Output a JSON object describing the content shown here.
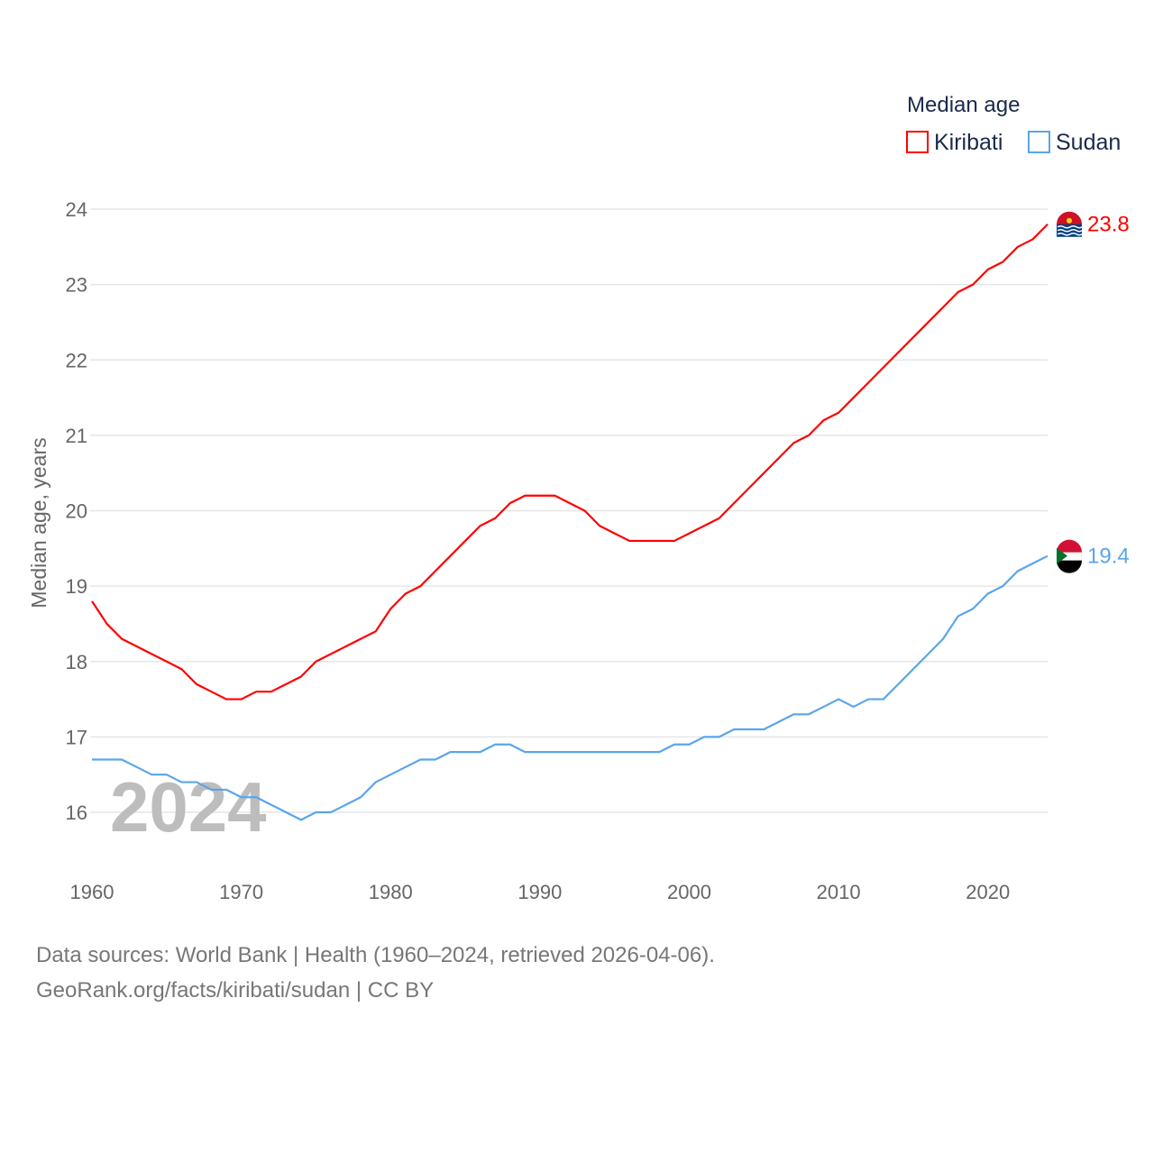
{
  "chart_data": {
    "type": "line",
    "title": "",
    "xlabel": "",
    "ylabel": "Median age, years",
    "ylim": [
      16,
      24
    ],
    "xlim": [
      1960,
      2024
    ],
    "yticks": [
      "16",
      "17",
      "18",
      "19",
      "20",
      "21",
      "22",
      "23",
      "24"
    ],
    "xticks": [
      "1960",
      "1970",
      "1980",
      "1990",
      "2000",
      "2010",
      "2020"
    ],
    "grid": true,
    "legend_title": "Median age",
    "legend_position": "top-right",
    "year_label": "2024",
    "x": [
      1960,
      1961,
      1962,
      1963,
      1964,
      1965,
      1966,
      1967,
      1968,
      1969,
      1970,
      1971,
      1972,
      1973,
      1974,
      1975,
      1976,
      1977,
      1978,
      1979,
      1980,
      1981,
      1982,
      1983,
      1984,
      1985,
      1986,
      1987,
      1988,
      1989,
      1990,
      1991,
      1992,
      1993,
      1994,
      1995,
      1996,
      1997,
      1998,
      1999,
      2000,
      2001,
      2002,
      2003,
      2004,
      2005,
      2006,
      2007,
      2008,
      2009,
      2010,
      2011,
      2012,
      2013,
      2014,
      2015,
      2016,
      2017,
      2018,
      2019,
      2020,
      2021,
      2022,
      2023,
      2024
    ],
    "series": [
      {
        "name": "Kiribati",
        "color": "#ff0000",
        "end_label": "23.8",
        "values": [
          18.8,
          18.5,
          18.3,
          18.2,
          18.1,
          18.0,
          17.9,
          17.7,
          17.6,
          17.5,
          17.5,
          17.6,
          17.6,
          17.7,
          17.8,
          18.0,
          18.1,
          18.2,
          18.3,
          18.4,
          18.7,
          18.9,
          19.0,
          19.2,
          19.4,
          19.6,
          19.8,
          19.9,
          20.1,
          20.2,
          20.2,
          20.2,
          20.1,
          20.0,
          19.8,
          19.7,
          19.6,
          19.6,
          19.6,
          19.6,
          19.7,
          19.8,
          19.9,
          20.1,
          20.3,
          20.5,
          20.7,
          20.9,
          21.0,
          21.2,
          21.3,
          21.5,
          21.7,
          21.9,
          22.1,
          22.3,
          22.5,
          22.7,
          22.9,
          23.0,
          23.2,
          23.3,
          23.5,
          23.6,
          23.8
        ]
      },
      {
        "name": "Sudan",
        "color": "#5aa5ea",
        "end_label": "19.4",
        "values": [
          16.7,
          16.7,
          16.7,
          16.6,
          16.5,
          16.5,
          16.4,
          16.4,
          16.3,
          16.3,
          16.2,
          16.2,
          16.1,
          16.0,
          15.9,
          16.0,
          16.0,
          16.1,
          16.2,
          16.4,
          16.5,
          16.6,
          16.7,
          16.7,
          16.8,
          16.8,
          16.8,
          16.9,
          16.9,
          16.8,
          16.8,
          16.8,
          16.8,
          16.8,
          16.8,
          16.8,
          16.8,
          16.8,
          16.8,
          16.9,
          16.9,
          17.0,
          17.0,
          17.1,
          17.1,
          17.1,
          17.2,
          17.3,
          17.3,
          17.4,
          17.5,
          17.4,
          17.5,
          17.5,
          17.7,
          17.9,
          18.1,
          18.3,
          18.6,
          18.7,
          18.9,
          19.0,
          19.2,
          19.3,
          19.4
        ]
      }
    ]
  },
  "footer": {
    "line1": "Data sources: World Bank | Health (1960–2024, retrieved 2026-04-06).",
    "line2": "GeoRank.org/facts/kiribati/sudan | CC BY"
  }
}
